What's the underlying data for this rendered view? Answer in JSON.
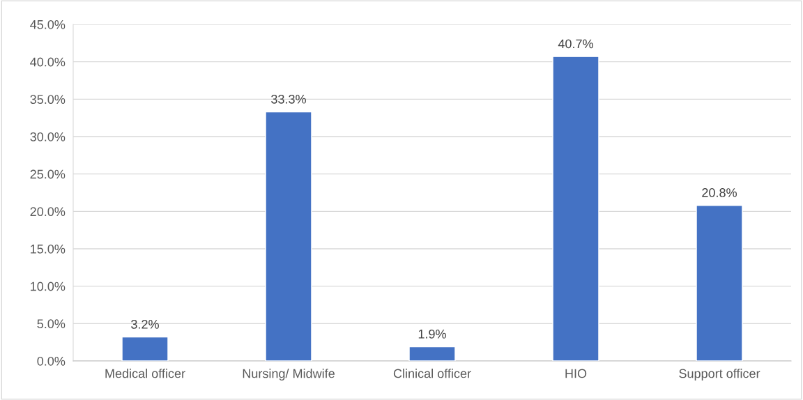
{
  "chart_data": {
    "type": "bar",
    "categories": [
      "Medical officer",
      "Nursing/ Midwife",
      "Clinical officer",
      "HIO",
      "Support officer"
    ],
    "values": [
      3.2,
      33.3,
      1.9,
      40.7,
      20.8
    ],
    "value_labels": [
      "3.2%",
      "33.3%",
      "1.9%",
      "40.7%",
      "20.8%"
    ],
    "color": "#4472c4",
    "ylim": [
      0,
      45
    ],
    "yticks": [
      {
        "value": 0,
        "label": "0.0%"
      },
      {
        "value": 5,
        "label": "5.0%"
      },
      {
        "value": 10,
        "label": "10.0%"
      },
      {
        "value": 15,
        "label": "15.0%"
      },
      {
        "value": 20,
        "label": "20.0%"
      },
      {
        "value": 25,
        "label": "25.0%"
      },
      {
        "value": 30,
        "label": "30.0%"
      },
      {
        "value": 35,
        "label": "35.0%"
      },
      {
        "value": 40,
        "label": "40.0%"
      },
      {
        "value": 45,
        "label": "45.0%"
      }
    ],
    "grid": "y",
    "legend": false
  }
}
